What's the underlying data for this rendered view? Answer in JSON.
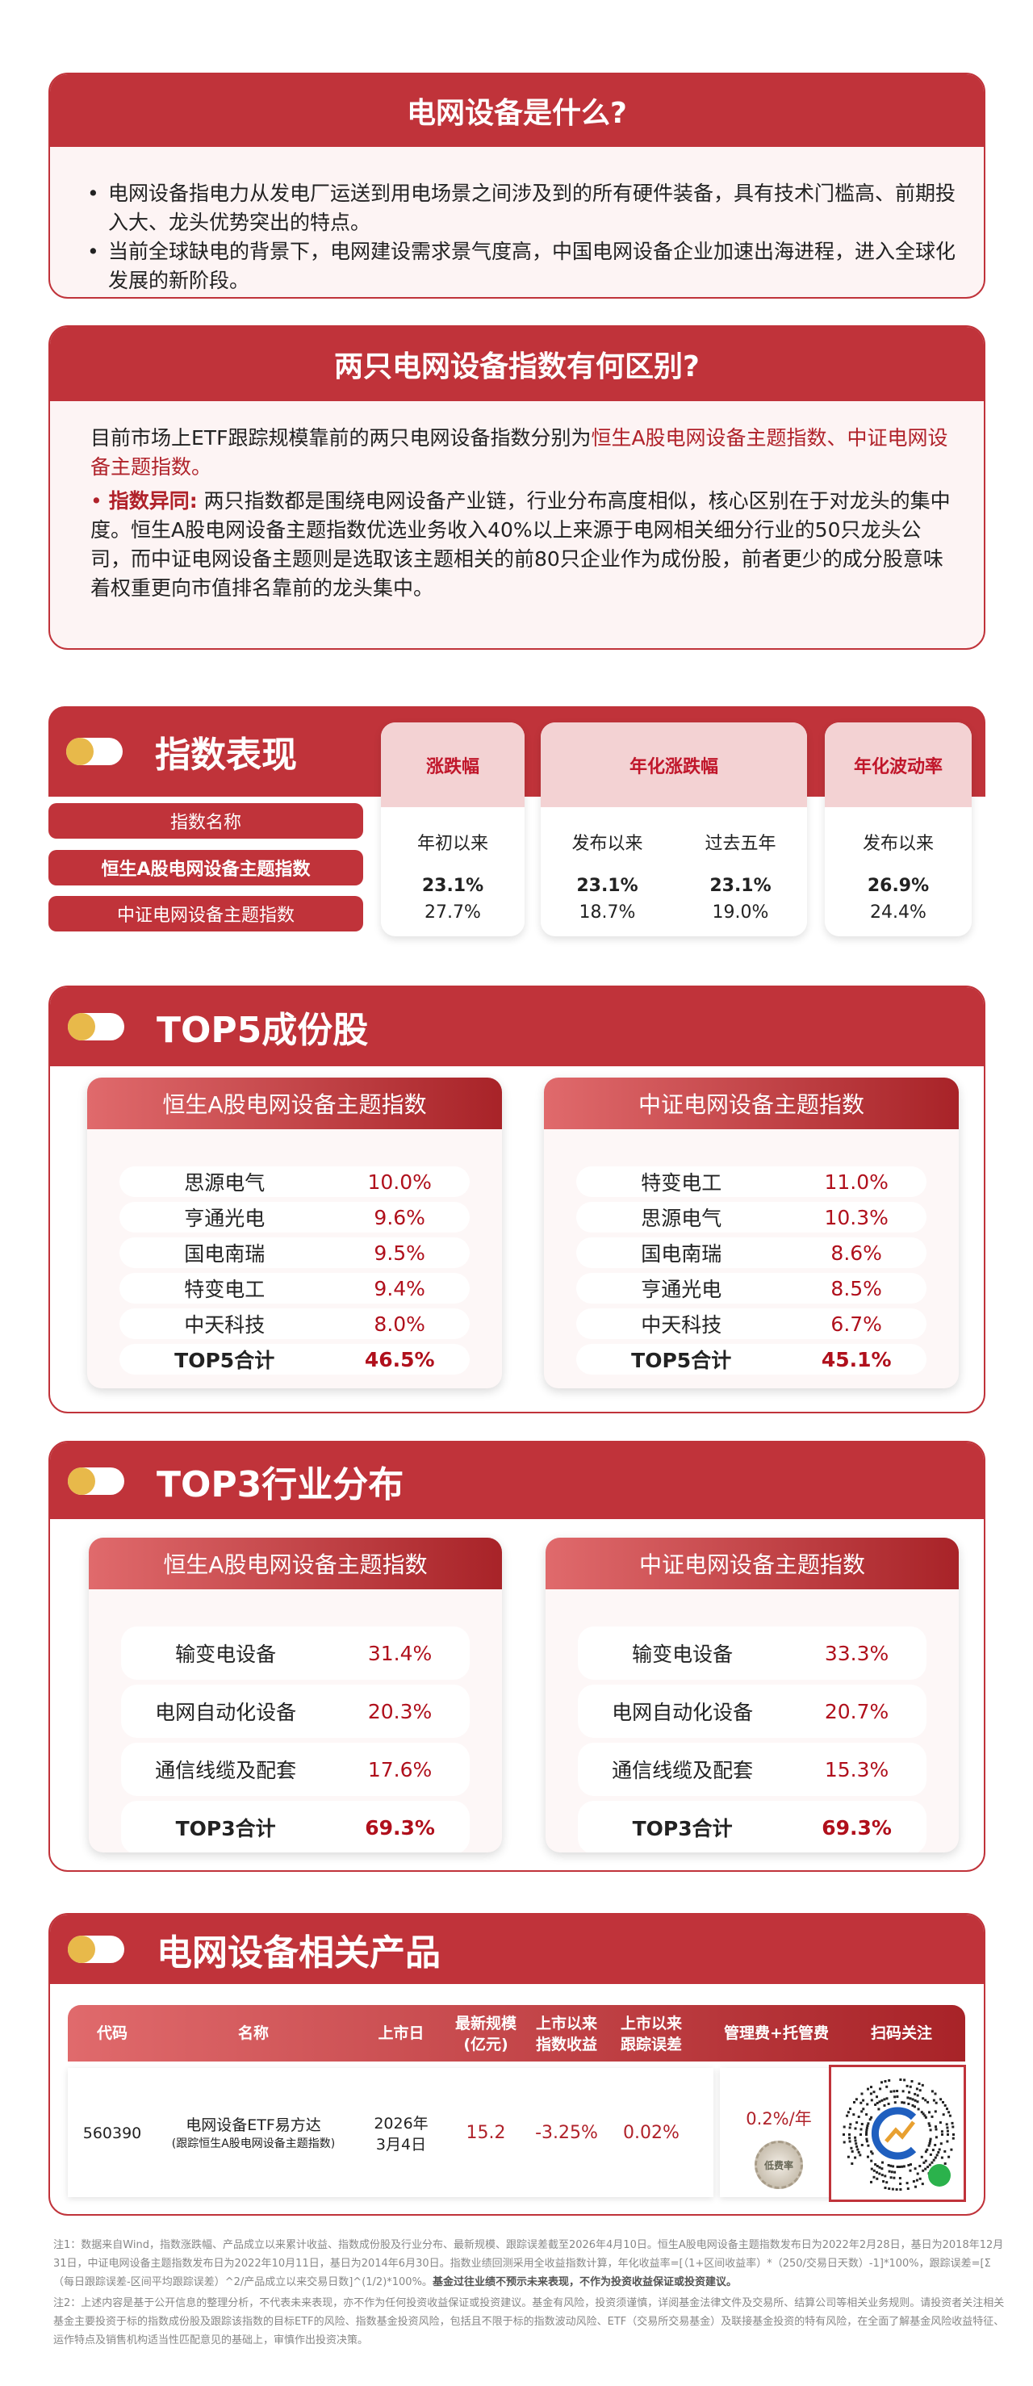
{
  "what": {
    "title": "电网设备是什么?",
    "bullets": [
      "电网设备指电力从发电厂运送到用电场景之间涉及到的所有硬件装备，具有技术门槛高、前期投入大、龙头优势突出的特点。",
      "当前全球缺电的背景下，电网建设需求景气度高，中国电网设备企业加速出海进程，进入全球化发展的新阶段。"
    ]
  },
  "diff": {
    "title": "两只电网设备指数有何区别?",
    "intro": "目前市场上ETF跟踪规模靠前的两只电网设备指数分别为",
    "intro_highlight": "恒生A股电网设备主题指数、中证电网设备主题指数。",
    "point_label": "指数异同:",
    "point_text": "两只指数都是围绕电网设备产业链，行业分布高度相似，核心区别在于对龙头的集中度。恒生A股电网设备主题指数优选业务收入40%以上来源于电网相关细分行业的50只龙头公司，而中证电网设备主题则是选取该主题相关的前80只企业作为成份股，前者更少的成分股意味着权重更向市值排名靠前的龙头集中。"
  },
  "perf": {
    "title": "指数表现",
    "row_header": "指数名称",
    "indices": [
      "恒生A股电网设备主题指数",
      "中证电网设备主题指数"
    ],
    "groups": [
      {
        "label": "涨跌幅",
        "subs": [
          "年初以来"
        ]
      },
      {
        "label": "年化涨跌幅",
        "subs": [
          "发布以来",
          "过去五年"
        ]
      },
      {
        "label": "年化波动率",
        "subs": [
          "发布以来"
        ]
      }
    ],
    "values": [
      [
        "23.1%",
        "23.1%",
        "23.1%",
        "26.9%"
      ],
      [
        "27.7%",
        "18.7%",
        "19.0%",
        "24.4%"
      ]
    ]
  },
  "top5": {
    "title": "TOP5成份股",
    "cards": [
      {
        "name": "恒生A股电网设备主题指数",
        "rows": [
          [
            "思源电气",
            "10.0%"
          ],
          [
            "亨通光电",
            "9.6%"
          ],
          [
            "国电南瑞",
            "9.5%"
          ],
          [
            "特变电工",
            "9.4%"
          ],
          [
            "中天科技",
            "8.0%"
          ]
        ],
        "total": [
          "TOP5合计",
          "46.5%"
        ]
      },
      {
        "name": "中证电网设备主题指数",
        "rows": [
          [
            "特变电工",
            "11.0%"
          ],
          [
            "思源电气",
            "10.3%"
          ],
          [
            "国电南瑞",
            "8.6%"
          ],
          [
            "亨通光电",
            "8.5%"
          ],
          [
            "中天科技",
            "6.7%"
          ]
        ],
        "total": [
          "TOP5合计",
          "45.1%"
        ]
      }
    ]
  },
  "top3": {
    "title": "TOP3行业分布",
    "cards": [
      {
        "name": "恒生A股电网设备主题指数",
        "rows": [
          [
            "输变电设备",
            "31.4%"
          ],
          [
            "电网自动化设备",
            "20.3%"
          ],
          [
            "通信线缆及配套",
            "17.6%"
          ]
        ],
        "total": [
          "TOP3合计",
          "69.3%"
        ]
      },
      {
        "name": "中证电网设备主题指数",
        "rows": [
          [
            "输变电设备",
            "33.3%"
          ],
          [
            "电网自动化设备",
            "20.7%"
          ],
          [
            "通信线缆及配套",
            "15.3%"
          ]
        ],
        "total": [
          "TOP3合计",
          "69.3%"
        ]
      }
    ]
  },
  "products": {
    "title": "电网设备相关产品",
    "headers": [
      "代码",
      "名称",
      "上市日",
      "最新规模\n(亿元)",
      "上市以来\n指数收益",
      "上市以来\n跟踪误差",
      "管理费+托管费",
      "扫码关注"
    ],
    "row": {
      "code": "560390",
      "name": "电网设备ETF易方达",
      "name_sub": "(跟踪恒生A股电网设备主题指数)",
      "date": "2026年\n3月4日",
      "size": "15.2",
      "return": "-3.25%",
      "te": "0.02%",
      "fee": "0.2%/年",
      "badge": "低费率"
    }
  },
  "notes": {
    "n1": "注1：数据来自Wind，指数涨跌幅、产品成立以来累计收益、指数成份股及行业分布、最新规模、跟踪误差截至2026年4月10日。恒生A股电网设备主题指数发布日为2022年2月28日，基日为2018年12月31日，中证电网设备主题指数发布日为2022年10月11日，基日为2014年6月30日。指数业绩回测采用全收益指数计算，年化收益率=[（1+区间收益率）*（250/交易日天数）-1]*100%，跟踪误差=[Σ（每日跟踪误差-区间平均跟踪误差）^2/产品成立以来交易日数]^(1/2)*100%。",
    "n1_bold": "基金过往业绩不预示未来表现，不作为投资收益保证或投资建议。",
    "n2": "注2：上述内容是基于公开信息的整理分析，不代表未来表现，亦不作为任何投资收益保证或投资建议。基金有风险，投资须谨慎，详阅基金法律文件及交易所、结算公司等相关业务规则。请投资者关注相关基金主要投资于标的指数成份股及跟踪该指数的目标ETF的风险、指数基金投资风险，包括且不限于标的指数波动风险、ETF（交易所交易基金）及联接基金投资的特有风险，在全面了解基金风险收益特征、运作特点及销售机构适当性匹配意见的基础上，审慎作出投资决策。"
  },
  "colors": {
    "accent": "#c0333a",
    "value_red": "#b0101c",
    "toggle_yellow": "#e8b94a"
  }
}
